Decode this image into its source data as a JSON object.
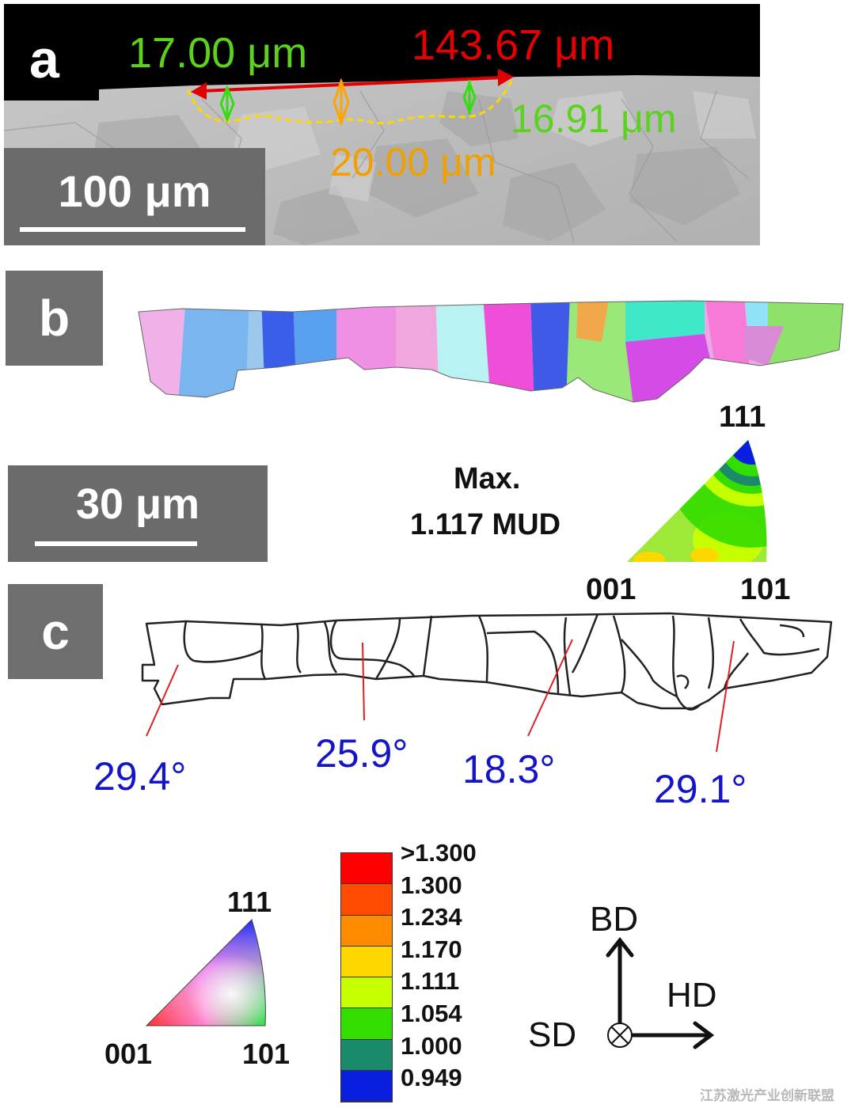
{
  "panel_a": {
    "letter": "a",
    "measurements": {
      "left_depth": "17.00 μm",
      "width": "143.67 μm",
      "right_depth": "16.91 μm",
      "center_depth": "20.00 μm"
    },
    "scale_bar": "100 μm"
  },
  "panel_b": {
    "letter": "b",
    "scale_bar": "30 μm",
    "max_label_line1": "Max.",
    "max_label_line2": "1.117 MUD",
    "pole_figure_labels": {
      "top": "111",
      "left": "001",
      "right": "101"
    }
  },
  "panel_c": {
    "letter": "c",
    "angles": [
      "29.4°",
      "25.9°",
      "18.3°",
      "29.1°"
    ]
  },
  "ipf_legend": {
    "top": "111",
    "left": "001",
    "right": "101"
  },
  "colorbar": {
    "labels": [
      ">1.300",
      "1.300",
      "1.234",
      "1.170",
      "1.111",
      "1.054",
      "1.000",
      "0.949"
    ],
    "colors": [
      "#ff0000",
      "#ff4a00",
      "#ff8c00",
      "#ffd700",
      "#c6ff00",
      "#33dd00",
      "#1a8a6a",
      "#0a1ee0"
    ]
  },
  "axes": {
    "vertical": "BD",
    "horizontal": "HD",
    "normal": "SD"
  },
  "watermark": "江苏激光产业创新联盟"
}
